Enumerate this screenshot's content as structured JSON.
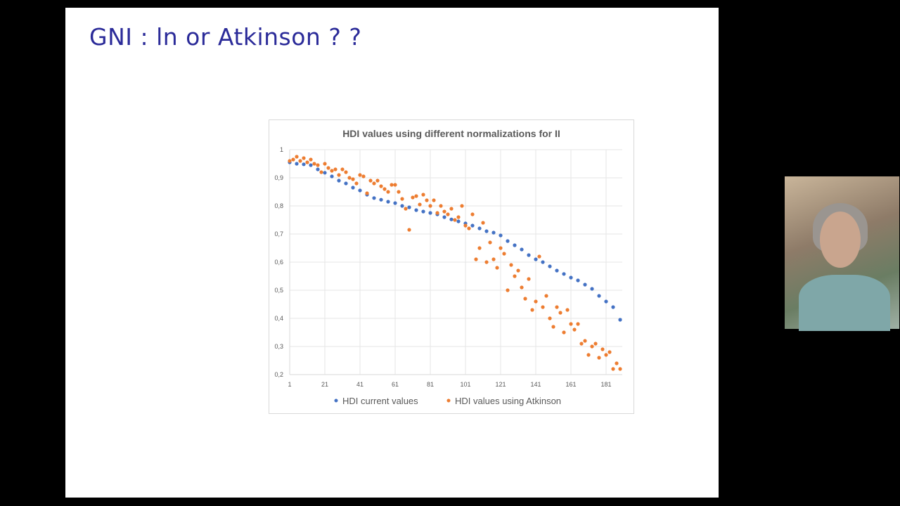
{
  "slide": {
    "title": "GNI : ln or Atkinson ? ?"
  },
  "chart_data": {
    "type": "scatter",
    "title": "HDI values using different normalizations for II",
    "xlim": [
      1,
      189
    ],
    "ylim": [
      0.2,
      1
    ],
    "x_ticks": [
      "1",
      "21",
      "41",
      "61",
      "81",
      "101",
      "121",
      "141",
      "161",
      "181"
    ],
    "y_ticks": [
      "0,2",
      "0,3",
      "0,4",
      "0,5",
      "0,6",
      "0,7",
      "0,8",
      "0,9",
      "1"
    ],
    "grid": true,
    "legend_position": "bottom",
    "series": [
      {
        "name": "HDI current values",
        "color": "#4472c4",
        "x": [
          1,
          5,
          9,
          13,
          17,
          21,
          25,
          29,
          33,
          37,
          41,
          45,
          49,
          53,
          57,
          61,
          65,
          69,
          73,
          77,
          81,
          85,
          89,
          93,
          97,
          101,
          105,
          109,
          113,
          117,
          121,
          125,
          129,
          133,
          137,
          141,
          145,
          149,
          153,
          157,
          161,
          165,
          169,
          173,
          177,
          181,
          185,
          189
        ],
        "y": [
          0.955,
          0.95,
          0.948,
          0.945,
          0.93,
          0.918,
          0.905,
          0.89,
          0.88,
          0.865,
          0.855,
          0.84,
          0.828,
          0.822,
          0.815,
          0.81,
          0.8,
          0.795,
          0.785,
          0.78,
          0.775,
          0.77,
          0.76,
          0.752,
          0.745,
          0.738,
          0.73,
          0.72,
          0.71,
          0.705,
          0.695,
          0.675,
          0.66,
          0.645,
          0.625,
          0.61,
          0.6,
          0.585,
          0.57,
          0.558,
          0.545,
          0.535,
          0.52,
          0.505,
          0.48,
          0.46,
          0.44,
          0.395
        ]
      },
      {
        "name": "HDI values using Atkinson",
        "color": "#ed7d31",
        "x": [
          1,
          3,
          5,
          7,
          9,
          11,
          13,
          15,
          17,
          19,
          21,
          23,
          25,
          27,
          29,
          31,
          33,
          35,
          37,
          39,
          41,
          43,
          45,
          47,
          49,
          51,
          53,
          55,
          57,
          59,
          61,
          63,
          65,
          67,
          69,
          71,
          73,
          75,
          77,
          79,
          81,
          83,
          85,
          87,
          89,
          91,
          93,
          95,
          97,
          99,
          101,
          103,
          105,
          107,
          109,
          111,
          113,
          115,
          117,
          119,
          121,
          123,
          125,
          127,
          129,
          131,
          133,
          135,
          137,
          139,
          141,
          143,
          145,
          147,
          149,
          151,
          153,
          155,
          157,
          159,
          161,
          163,
          165,
          167,
          169,
          171,
          173,
          175,
          177,
          179,
          181,
          183,
          185,
          187,
          189
        ],
        "y": [
          0.96,
          0.965,
          0.975,
          0.96,
          0.97,
          0.955,
          0.965,
          0.95,
          0.945,
          0.92,
          0.95,
          0.935,
          0.925,
          0.93,
          0.91,
          0.93,
          0.92,
          0.9,
          0.895,
          0.88,
          0.91,
          0.905,
          0.845,
          0.89,
          0.88,
          0.89,
          0.87,
          0.86,
          0.85,
          0.875,
          0.875,
          0.85,
          0.825,
          0.79,
          0.715,
          0.83,
          0.835,
          0.805,
          0.84,
          0.82,
          0.8,
          0.82,
          0.775,
          0.8,
          0.78,
          0.77,
          0.79,
          0.75,
          0.76,
          0.8,
          0.73,
          0.72,
          0.77,
          0.61,
          0.65,
          0.74,
          0.6,
          0.67,
          0.61,
          0.58,
          0.65,
          0.63,
          0.5,
          0.59,
          0.55,
          0.57,
          0.51,
          0.47,
          0.54,
          0.43,
          0.46,
          0.62,
          0.44,
          0.48,
          0.4,
          0.37,
          0.44,
          0.42,
          0.35,
          0.43,
          0.38,
          0.36,
          0.38,
          0.31,
          0.32,
          0.27,
          0.3,
          0.31,
          0.26,
          0.29,
          0.27,
          0.28,
          0.22,
          0.24,
          0.22
        ]
      }
    ]
  }
}
